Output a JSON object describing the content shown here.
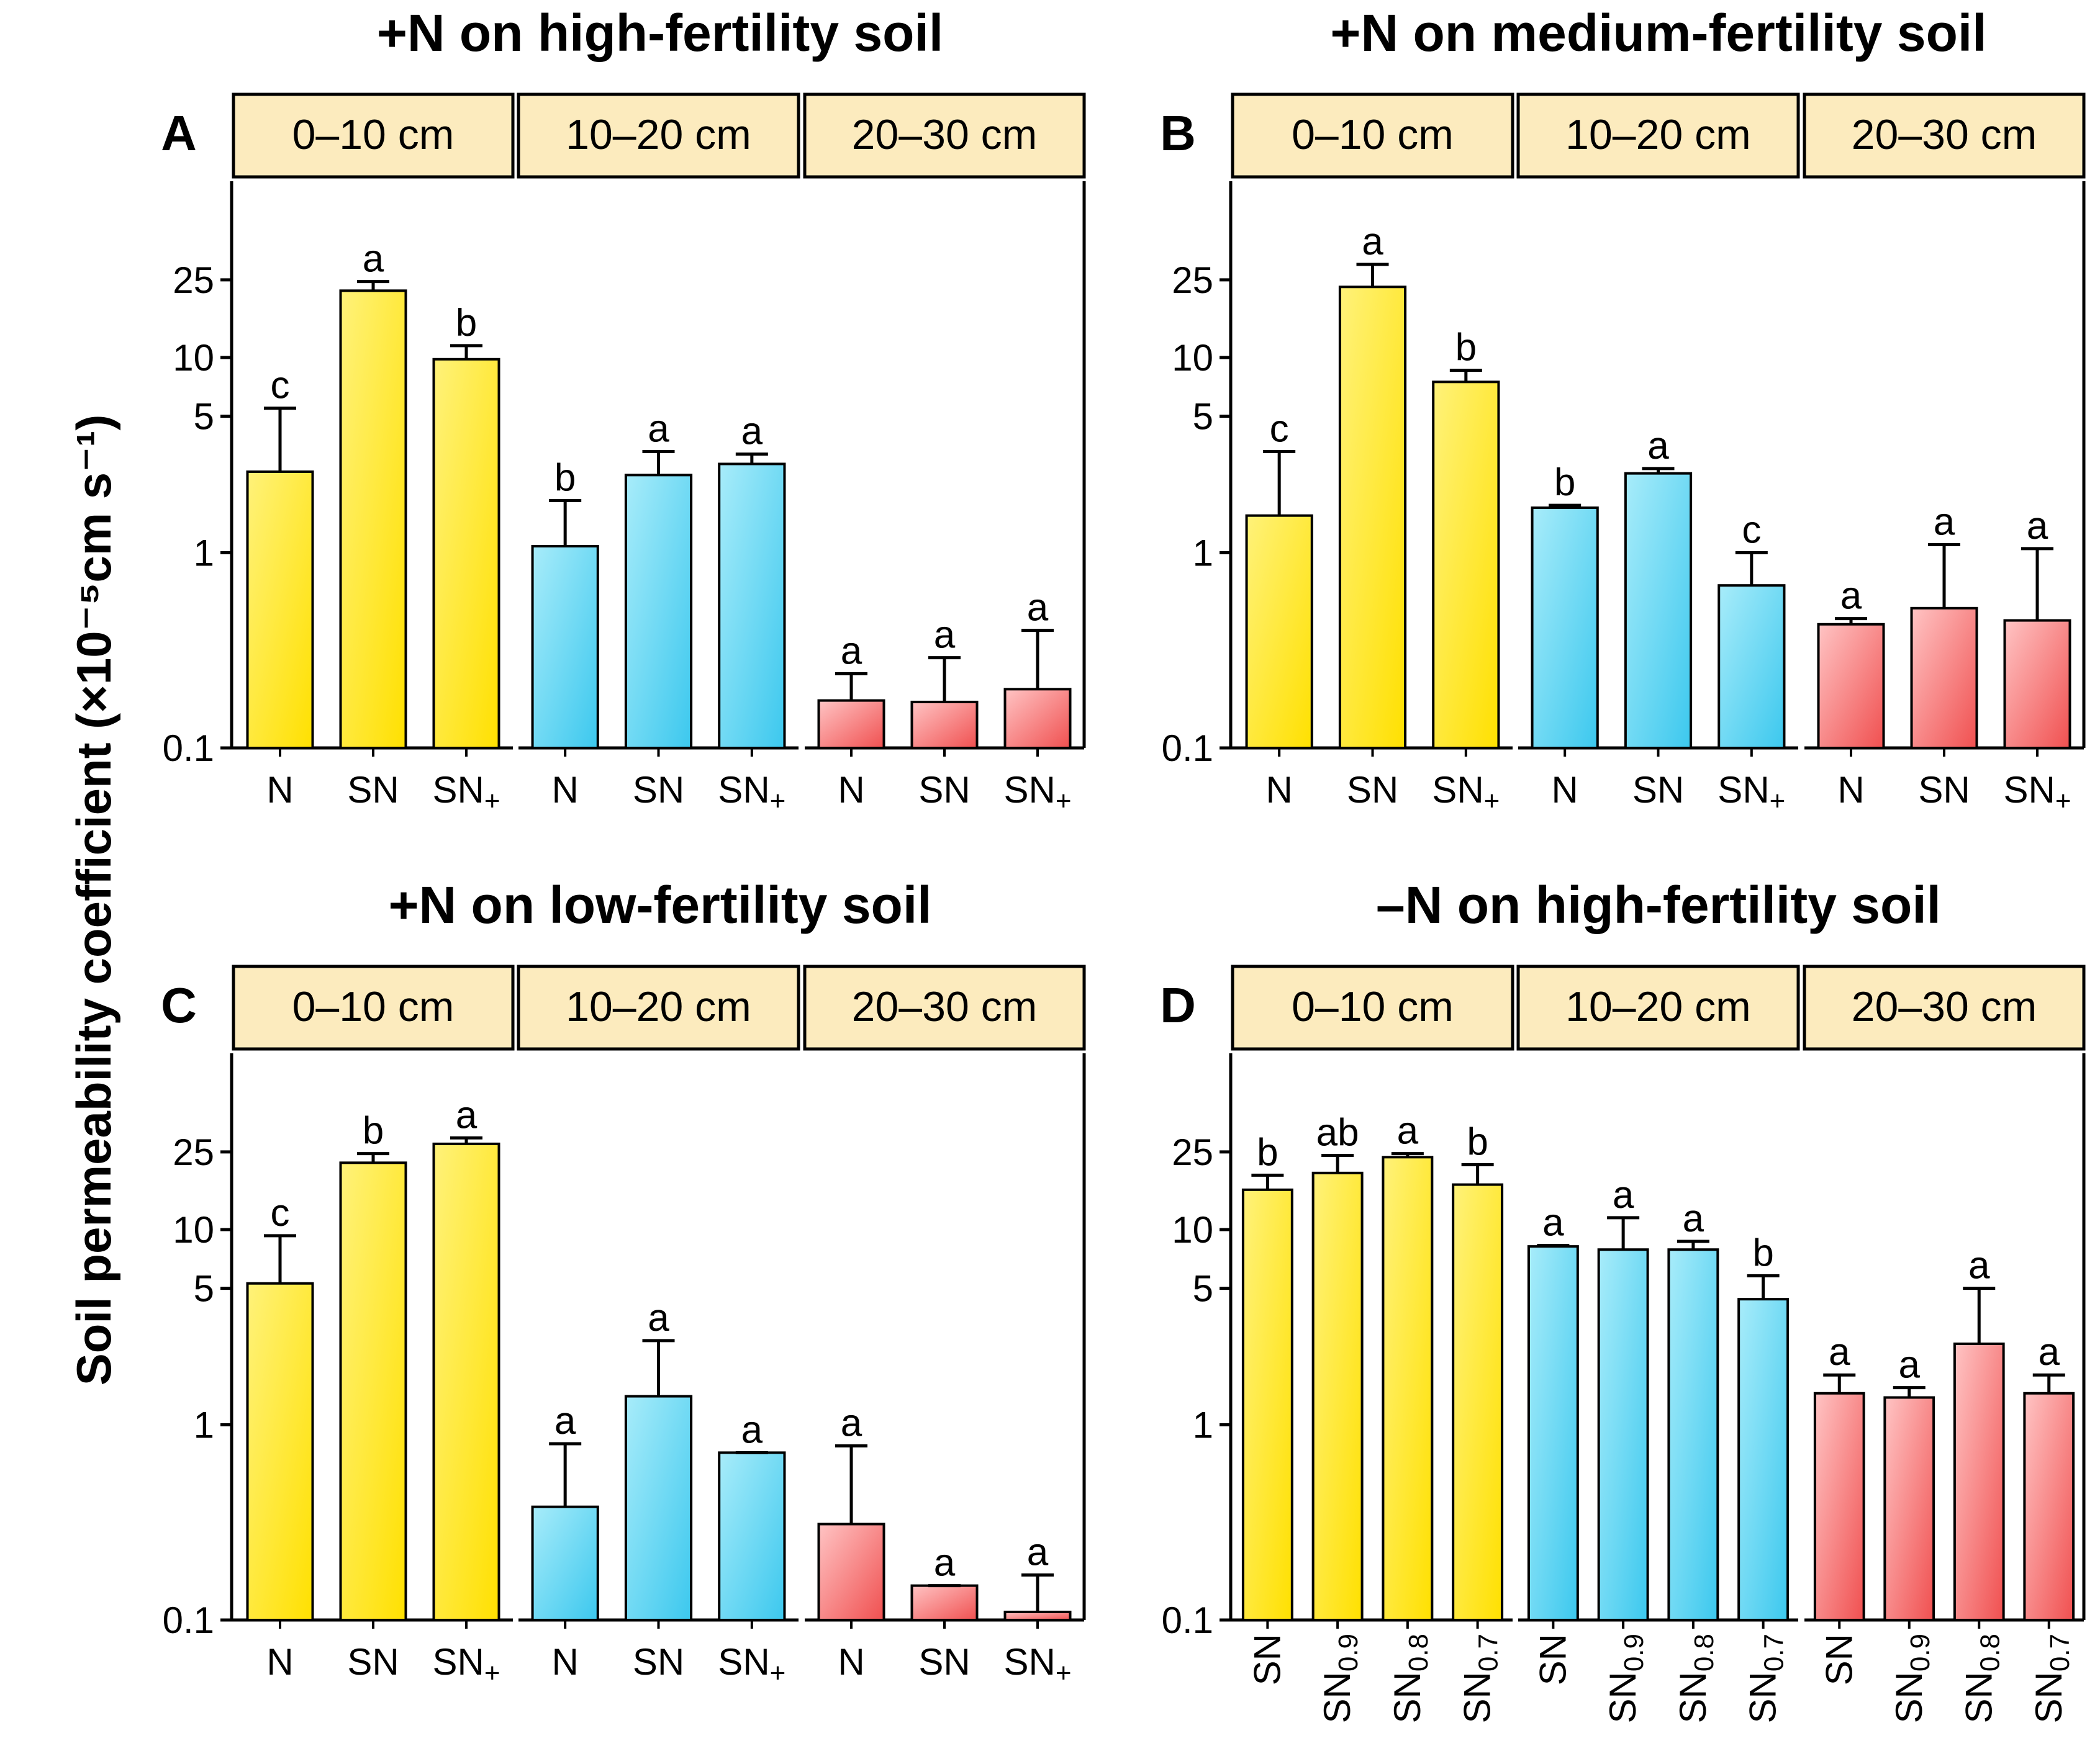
{
  "chart_data": {
    "type": "bar",
    "y_axis": {
      "title": "Soil permeability coefficient (×10⁻⁵cm s⁻¹)",
      "scale": "log",
      "ylim": [
        0.1,
        80
      ],
      "ticks": [
        0.1,
        1,
        5,
        10,
        25
      ],
      "tick_labels": [
        "0.1",
        "1",
        "5",
        "10",
        "25"
      ]
    },
    "colors": {
      "0–10 cm": "#FFE000",
      "10–20 cm": "#3CC8EE",
      "20–30 cm": "#F05050",
      "strip_fill": "#FCEBBE"
    },
    "panels": [
      {
        "letter": "A",
        "title": "+N on high-fertility soil",
        "facets": [
          {
            "label": "0–10 cm",
            "bars": [
              {
                "cat": "N",
                "value": 2.6,
                "error_upper": 5.5,
                "sig": "c"
              },
              {
                "cat": "SN",
                "value": 22,
                "error_upper": 24.5,
                "sig": "a"
              },
              {
                "cat": "SN+",
                "value": 9.8,
                "error_upper": 11.5,
                "sig": "b"
              }
            ]
          },
          {
            "label": "10–20 cm",
            "bars": [
              {
                "cat": "N",
                "value": 1.08,
                "error_upper": 1.85,
                "sig": "b"
              },
              {
                "cat": "SN",
                "value": 2.5,
                "error_upper": 3.3,
                "sig": "a"
              },
              {
                "cat": "SN+",
                "value": 2.85,
                "error_upper": 3.2,
                "sig": "a"
              }
            ]
          },
          {
            "label": "20–30 cm",
            "bars": [
              {
                "cat": "N",
                "value": 0.175,
                "error_upper": 0.24,
                "sig": "a"
              },
              {
                "cat": "SN",
                "value": 0.172,
                "error_upper": 0.29,
                "sig": "a"
              },
              {
                "cat": "SN+",
                "value": 0.2,
                "error_upper": 0.4,
                "sig": "a"
              }
            ]
          }
        ]
      },
      {
        "letter": "B",
        "title": "+N on medium-fertility soil",
        "facets": [
          {
            "label": "0–10 cm",
            "bars": [
              {
                "cat": "N",
                "value": 1.55,
                "error_upper": 3.3,
                "sig": "c"
              },
              {
                "cat": "SN",
                "value": 23,
                "error_upper": 30,
                "sig": "a"
              },
              {
                "cat": "SN+",
                "value": 7.5,
                "error_upper": 8.6,
                "sig": "b"
              }
            ]
          },
          {
            "label": "10–20 cm",
            "bars": [
              {
                "cat": "N",
                "value": 1.7,
                "error_upper": 1.75,
                "sig": "b"
              },
              {
                "cat": "SN",
                "value": 2.55,
                "error_upper": 2.7,
                "sig": "a"
              },
              {
                "cat": "SN+",
                "value": 0.68,
                "error_upper": 1.0,
                "sig": "c"
              }
            ]
          },
          {
            "label": "20–30 cm",
            "bars": [
              {
                "cat": "N",
                "value": 0.43,
                "error_upper": 0.46,
                "sig": "a"
              },
              {
                "cat": "SN",
                "value": 0.52,
                "error_upper": 1.1,
                "sig": "a"
              },
              {
                "cat": "SN+",
                "value": 0.45,
                "error_upper": 1.05,
                "sig": "a"
              }
            ]
          }
        ]
      },
      {
        "letter": "C",
        "title": "+N on low-fertility soil",
        "facets": [
          {
            "label": "0–10 cm",
            "bars": [
              {
                "cat": "N",
                "value": 5.3,
                "error_upper": 9.3,
                "sig": "c"
              },
              {
                "cat": "SN",
                "value": 22,
                "error_upper": 24.5,
                "sig": "b"
              },
              {
                "cat": "SN+",
                "value": 27.5,
                "error_upper": 29.5,
                "sig": "a"
              }
            ]
          },
          {
            "label": "10–20 cm",
            "bars": [
              {
                "cat": "N",
                "value": 0.38,
                "error_upper": 0.8,
                "sig": "a"
              },
              {
                "cat": "SN",
                "value": 1.4,
                "error_upper": 2.7,
                "sig": "a"
              },
              {
                "cat": "SN+",
                "value": 0.72,
                "error_upper": 0.72,
                "sig": "a"
              }
            ]
          },
          {
            "label": "20–30 cm",
            "bars": [
              {
                "cat": "N",
                "value": 0.31,
                "error_upper": 0.78,
                "sig": "a"
              },
              {
                "cat": "SN",
                "value": 0.15,
                "error_upper": 0.15,
                "sig": "a"
              },
              {
                "cat": "SN+",
                "value": 0.11,
                "error_upper": 0.17,
                "sig": "a"
              }
            ]
          }
        ]
      },
      {
        "letter": "D",
        "title": "–N on high-fertility soil",
        "facets": [
          {
            "label": "0–10 cm",
            "bars": [
              {
                "cat": "SN",
                "value": 16,
                "error_upper": 19,
                "sig": "b"
              },
              {
                "cat": "SN0.9",
                "value": 19.5,
                "error_upper": 24,
                "sig": "ab"
              },
              {
                "cat": "SN0.8",
                "value": 23.5,
                "error_upper": 24.5,
                "sig": "a"
              },
              {
                "cat": "SN0.7",
                "value": 17,
                "error_upper": 21.5,
                "sig": "b"
              }
            ]
          },
          {
            "label": "10–20 cm",
            "bars": [
              {
                "cat": "SN",
                "value": 8.2,
                "error_upper": 8.3,
                "sig": "a"
              },
              {
                "cat": "SN0.9",
                "value": 7.9,
                "error_upper": 11.5,
                "sig": "a"
              },
              {
                "cat": "SN0.8",
                "value": 7.9,
                "error_upper": 8.7,
                "sig": "a"
              },
              {
                "cat": "SN0.7",
                "value": 4.4,
                "error_upper": 5.8,
                "sig": "b"
              }
            ]
          },
          {
            "label": "20–30 cm",
            "bars": [
              {
                "cat": "SN",
                "value": 1.45,
                "error_upper": 1.8,
                "sig": "a"
              },
              {
                "cat": "SN0.9",
                "value": 1.38,
                "error_upper": 1.55,
                "sig": "a"
              },
              {
                "cat": "SN0.8",
                "value": 2.6,
                "error_upper": 5.0,
                "sig": "a"
              },
              {
                "cat": "SN0.7",
                "value": 1.45,
                "error_upper": 1.8,
                "sig": "a"
              }
            ]
          }
        ]
      }
    ]
  }
}
